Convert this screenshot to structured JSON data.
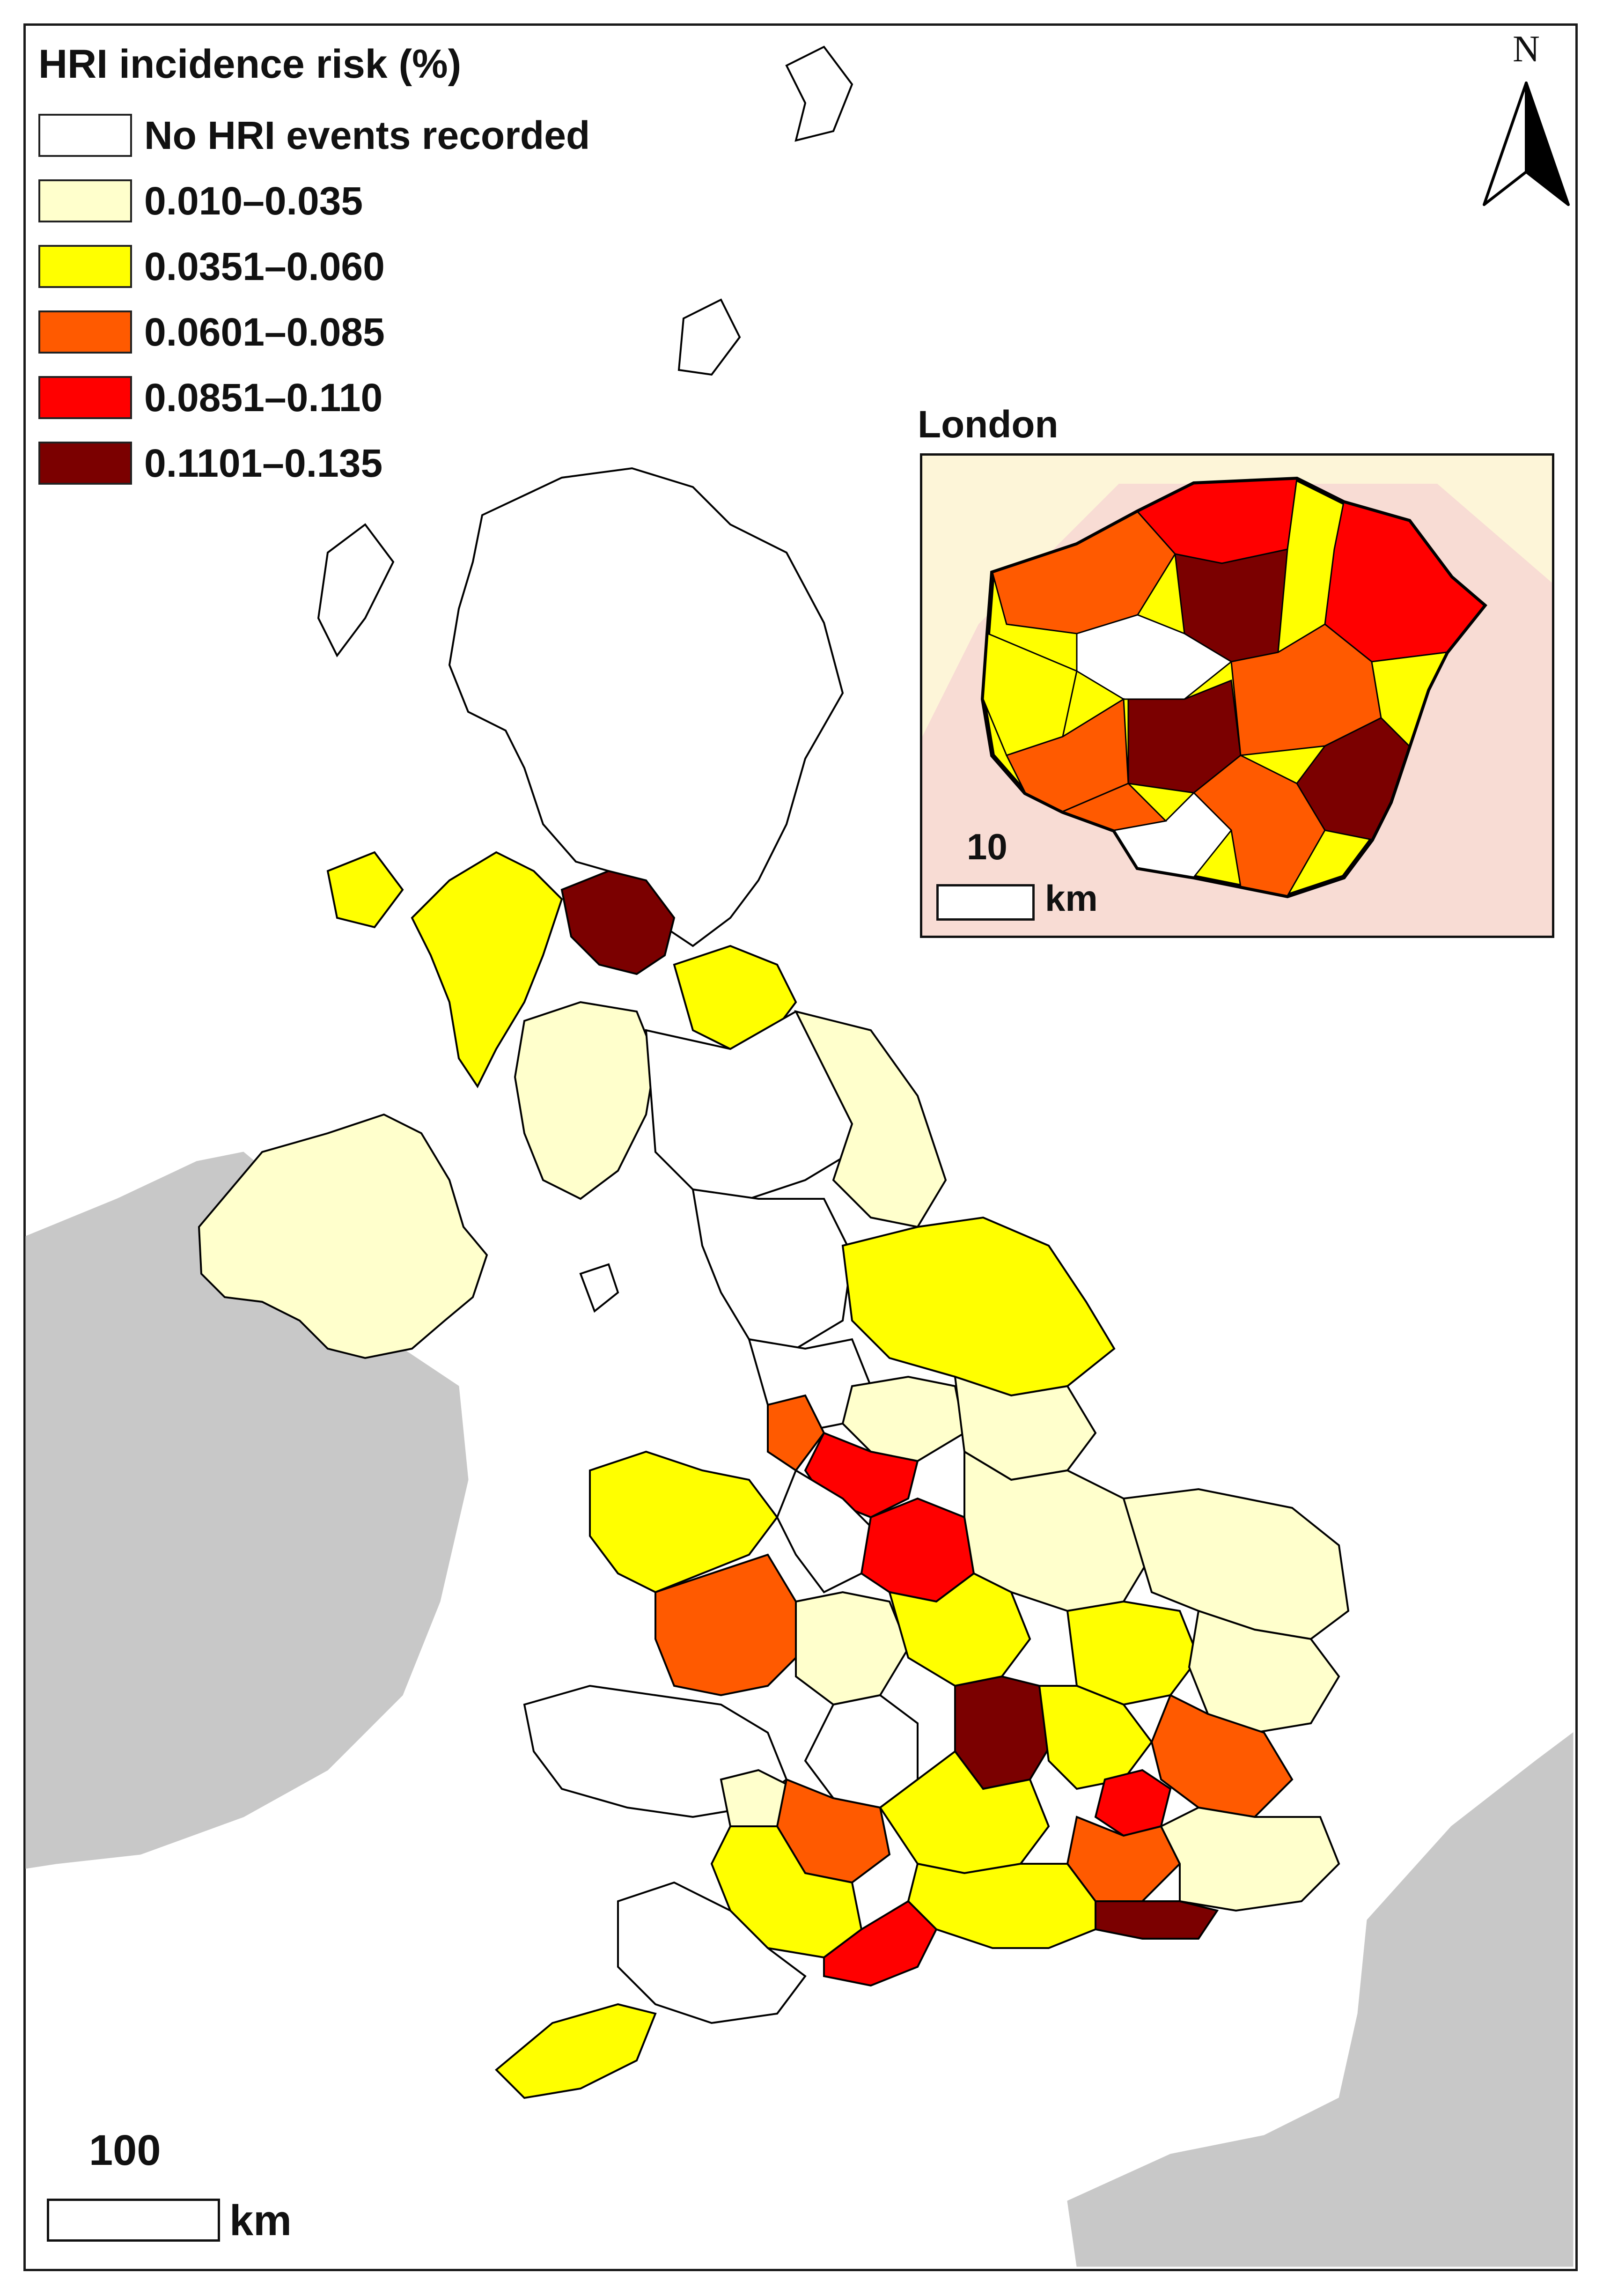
{
  "legend": {
    "title": "HRI incidence risk (%)",
    "classes": [
      {
        "label": "No HRI events recorded",
        "color": "#ffffff"
      },
      {
        "label": "0.010–0.035",
        "color": "#ffffcc"
      },
      {
        "label": "0.0351–0.060",
        "color": "#ffff00"
      },
      {
        "label": "0.0601–0.085",
        "color": "#ff5a00"
      },
      {
        "label": "0.0851–0.110",
        "color": "#ff0000"
      },
      {
        "label": "0.1101–0.135",
        "color": "#7b0000"
      }
    ]
  },
  "north_arrow": {
    "label": "N"
  },
  "main_scale": {
    "value": "100",
    "unit": "km"
  },
  "inset": {
    "title": "London",
    "scale_value": "10",
    "scale_unit": "km"
  },
  "colors": {
    "land_outside": "#c8c8c8",
    "boundary": "#000000",
    "frame": "#1a1a1a"
  }
}
